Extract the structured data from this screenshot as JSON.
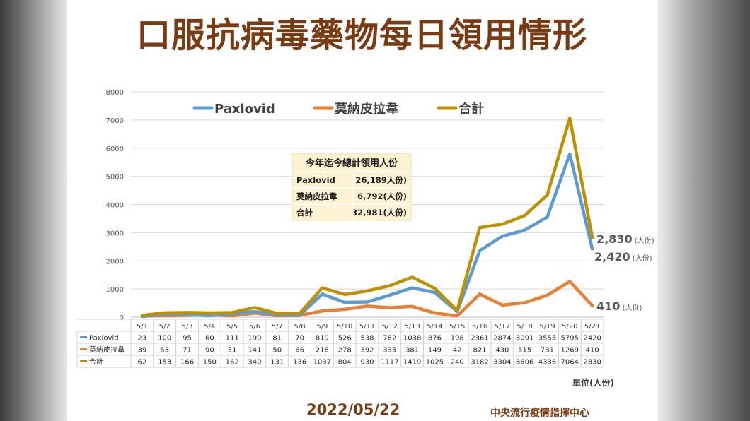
{
  "title": "口服抗病毒藥物每日領用情形",
  "date": "2022/05/22",
  "source": "中央流行疫情指揮中心",
  "unit_label": "單位(人份)",
  "colors": {
    "paxlovid": "#5b9bd5",
    "molnupiravir": "#ed7d31",
    "total": "#bf9000",
    "title": "#7b3a10"
  },
  "summary_box": {
    "title": "今年迄今總計領用人份",
    "rows": [
      {
        "label": "Paxlovid",
        "value": "26,189人份)"
      },
      {
        "label": "莫納皮拉韋",
        "value": "6,792(人份)"
      },
      {
        "label": "合計",
        "value": "32,981(人份)"
      }
    ]
  },
  "end_labels": {
    "total": {
      "num": "2,830",
      "unit": "(人份)"
    },
    "paxlovid": {
      "num": "2,420",
      "unit": "(人份)"
    },
    "molnupiravir": {
      "num": "410",
      "unit": "(人份)"
    }
  },
  "chart_data": {
    "type": "line",
    "x": [
      "5/1",
      "5/2",
      "5/3",
      "5/4",
      "5/5",
      "5/6",
      "5/7",
      "5/8",
      "5/9",
      "5/10",
      "5/11",
      "5/12",
      "5/13",
      "5/14",
      "5/15",
      "5/16",
      "5/17",
      "5/18",
      "5/19",
      "5/20",
      "5/21"
    ],
    "ylim": [
      0,
      8000
    ],
    "yticks": [
      0,
      1000,
      2000,
      3000,
      4000,
      5000,
      6000,
      7000,
      8000
    ],
    "grid": true,
    "legend_position": "top",
    "series": [
      {
        "key": "paxlovid",
        "name": "Paxlovid",
        "values": [
          23,
          100,
          95,
          60,
          111,
          199,
          81,
          70,
          819,
          526,
          538,
          782,
          1038,
          876,
          198,
          2361,
          2874,
          3091,
          3555,
          5795,
          2420
        ]
      },
      {
        "key": "molnupiravir",
        "name": "莫納皮拉韋",
        "values": [
          39,
          53,
          71,
          90,
          51,
          141,
          50,
          66,
          218,
          278,
          392,
          335,
          381,
          149,
          42,
          821,
          430,
          515,
          781,
          1269,
          410
        ]
      },
      {
        "key": "total",
        "name": "合計",
        "values": [
          62,
          153,
          166,
          150,
          162,
          340,
          131,
          136,
          1037,
          804,
          930,
          1117,
          1419,
          1025,
          240,
          3182,
          3304,
          3606,
          4336,
          7064,
          2830
        ]
      }
    ]
  }
}
